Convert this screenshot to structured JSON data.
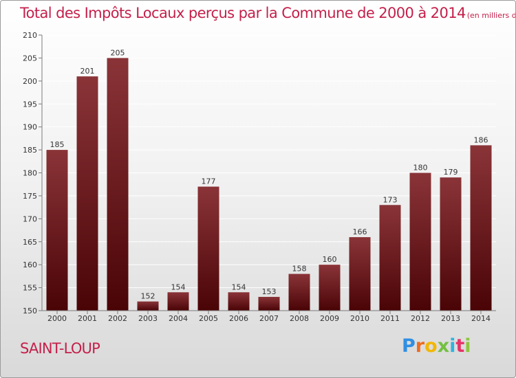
{
  "title": "Total des Impôts Locaux perçus par la Commune de 2000 à 2014",
  "title_unit": "(en milliers d'€)",
  "commune": "SAINT-LOUP",
  "logo": {
    "letters": [
      "P",
      "r",
      "o",
      "x",
      "i",
      "t",
      "i"
    ]
  },
  "colors": {
    "title": "#c4204a",
    "bar_light": "#8a3438",
    "bar_dark": "#4a0406",
    "grid": "#ffffff",
    "axis": "#7a7a7a"
  },
  "chart_data": {
    "type": "bar",
    "categories": [
      "2000",
      "2001",
      "2002",
      "2003",
      "2004",
      "2005",
      "2006",
      "2007",
      "2008",
      "2009",
      "2010",
      "2011",
      "2012",
      "2013",
      "2014"
    ],
    "values": [
      185,
      201,
      205,
      152,
      154,
      177,
      154,
      153,
      158,
      160,
      166,
      173,
      180,
      179,
      186
    ],
    "ylim": [
      150,
      210
    ],
    "yticks": [
      150,
      155,
      160,
      165,
      170,
      175,
      180,
      185,
      190,
      195,
      200,
      205,
      210
    ],
    "grid": true
  }
}
